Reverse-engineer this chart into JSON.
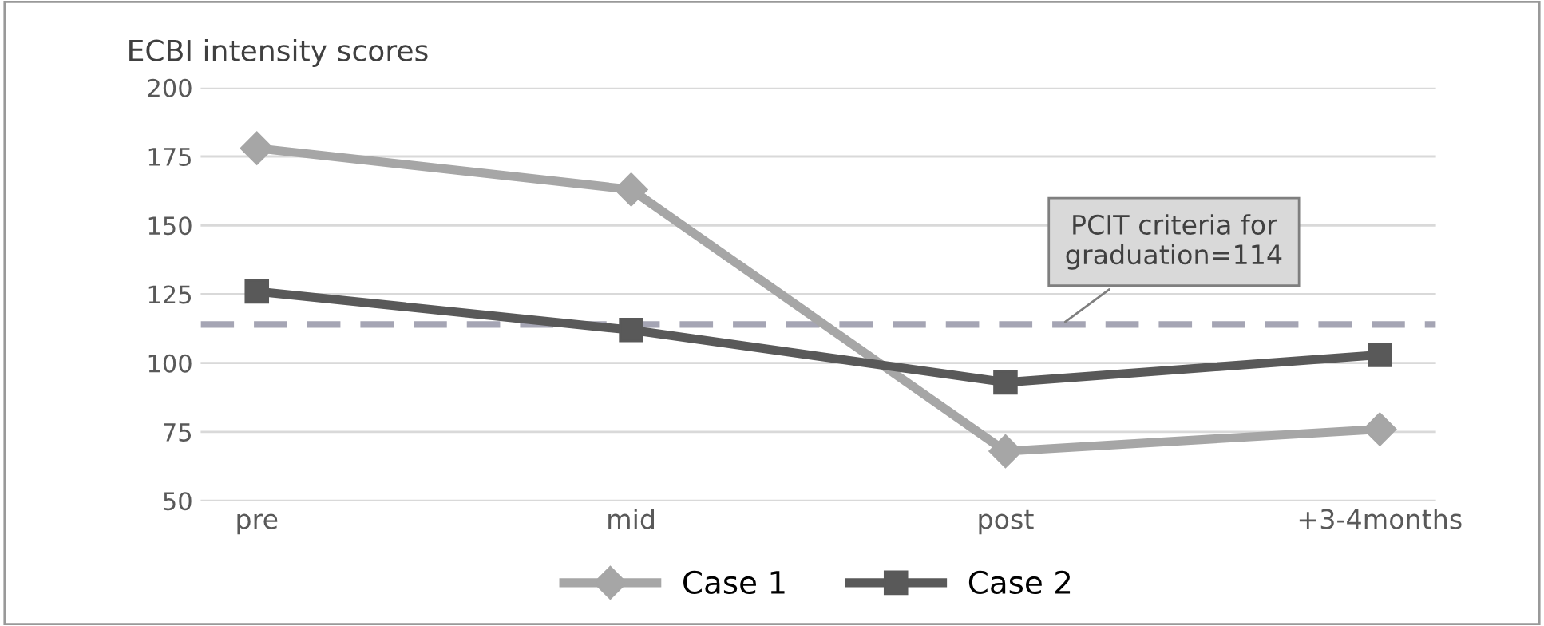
{
  "chart_data": {
    "type": "line",
    "ylabel": "ECBI intensity scores",
    "categories": [
      "pre",
      "mid",
      "post",
      "+3-4months"
    ],
    "series": [
      {
        "name": "Case 1",
        "color": "#a6a6a6",
        "marker": "diamond",
        "values": [
          178,
          163,
          68,
          76
        ]
      },
      {
        "name": "Case 2",
        "color": "#595959",
        "marker": "square",
        "values": [
          126,
          112,
          93,
          103
        ]
      }
    ],
    "ylim": [
      50,
      200
    ],
    "yticks": [
      50,
      75,
      100,
      125,
      150,
      175,
      200
    ],
    "grid": "y",
    "legend": "bottom",
    "ref_lines": [
      {
        "axis": "y",
        "value": 114,
        "label": "PCIT criteria for\ngraduation=114",
        "color": "#a5a5b4",
        "line_style": "dashed"
      }
    ]
  }
}
